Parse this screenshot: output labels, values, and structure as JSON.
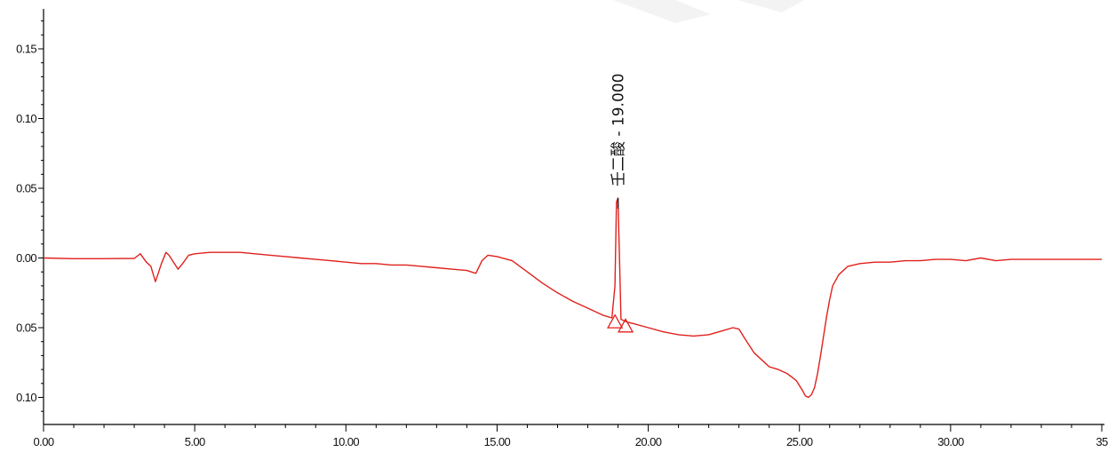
{
  "chart_data": {
    "type": "line",
    "title": "",
    "xlabel": "",
    "ylabel": "",
    "xlim": [
      0,
      35
    ],
    "ylim": [
      -0.12,
      0.175
    ],
    "x_ticks": [
      {
        "value": 0,
        "label": "0.00"
      },
      {
        "value": 5,
        "label": "5.00"
      },
      {
        "value": 10,
        "label": "10.00"
      },
      {
        "value": 15,
        "label": "15.00"
      },
      {
        "value": 20,
        "label": "20.00"
      },
      {
        "value": 25,
        "label": "25.00"
      },
      {
        "value": 30,
        "label": "30.00"
      },
      {
        "value": 35,
        "label": "35"
      }
    ],
    "y_ticks": [
      {
        "value": 0.15,
        "label": "0.15"
      },
      {
        "value": 0.1,
        "label": "0.10"
      },
      {
        "value": 0.05,
        "label": "0.05"
      },
      {
        "value": 0.0,
        "label": "0.00"
      },
      {
        "value": -0.05,
        "label": "0.05"
      },
      {
        "value": -0.1,
        "label": "0.10"
      }
    ],
    "grid": false,
    "series_color": "#e0201c",
    "series": [
      {
        "x": [
          0,
          1,
          2,
          3.0,
          3.2,
          3.4,
          3.55,
          3.7,
          3.78,
          3.9,
          4.05,
          4.15,
          4.3,
          4.45,
          4.6,
          4.8,
          5.0,
          5.5,
          6.0,
          6.5,
          7.0,
          7.5,
          8.0,
          8.5,
          9.0,
          9.5,
          10.0,
          10.5,
          11.0,
          11.5,
          12.0,
          12.5,
          13.0,
          13.5,
          14.0,
          14.3,
          14.5,
          14.7,
          15.0,
          15.5,
          16.0,
          16.5,
          17.0,
          17.5,
          18.0,
          18.5,
          18.8,
          18.9,
          18.95,
          19.0,
          19.05,
          19.1,
          19.3,
          19.5,
          20.0,
          20.5,
          21.0,
          21.5,
          22.0,
          22.5,
          22.8,
          23.0,
          23.2,
          23.5,
          23.8,
          24.0,
          24.3,
          24.6,
          24.9,
          25.1,
          25.2,
          25.3,
          25.4,
          25.5,
          25.6,
          25.7,
          25.8,
          25.9,
          26.0,
          26.1,
          26.3,
          26.6,
          27.0,
          27.5,
          28.0,
          28.5,
          29.0,
          29.5,
          30.0,
          30.5,
          31.0,
          31.5,
          32.0,
          32.5,
          33.0,
          33.5,
          34.0,
          34.5,
          35.0
        ],
        "y": [
          0.0,
          -0.0005,
          -0.0005,
          -0.0003,
          0.003,
          -0.003,
          -0.006,
          -0.017,
          -0.012,
          -0.004,
          0.004,
          0.002,
          -0.003,
          -0.008,
          -0.004,
          0.002,
          0.003,
          0.004,
          0.004,
          0.004,
          0.003,
          0.002,
          0.001,
          0.0,
          -0.001,
          -0.002,
          -0.003,
          -0.004,
          -0.004,
          -0.005,
          -0.005,
          -0.006,
          -0.007,
          -0.008,
          -0.009,
          -0.011,
          -0.002,
          0.002,
          0.001,
          -0.002,
          -0.01,
          -0.018,
          -0.025,
          -0.031,
          -0.036,
          -0.041,
          -0.043,
          -0.02,
          0.04,
          0.043,
          0.0,
          -0.044,
          -0.046,
          -0.047,
          -0.05,
          -0.053,
          -0.055,
          -0.056,
          -0.055,
          -0.052,
          -0.05,
          -0.051,
          -0.058,
          -0.068,
          -0.074,
          -0.078,
          -0.08,
          -0.083,
          -0.088,
          -0.095,
          -0.099,
          -0.1,
          -0.098,
          -0.093,
          -0.083,
          -0.07,
          -0.056,
          -0.042,
          -0.03,
          -0.02,
          -0.012,
          -0.006,
          -0.004,
          -0.003,
          -0.003,
          -0.002,
          -0.002,
          -0.001,
          -0.001,
          -0.002,
          0.0,
          -0.002,
          -0.001,
          -0.001,
          -0.001,
          -0.001,
          -0.001,
          -0.001,
          -0.001
        ]
      }
    ],
    "annotations": [
      {
        "text": "壬二酸 - 19.000",
        "x": 19.0,
        "orientation": "vertical"
      }
    ],
    "integration_markers": [
      {
        "x": 18.9,
        "y": -0.046,
        "shape": "triangle-open"
      },
      {
        "x": 19.25,
        "y": -0.049,
        "shape": "triangle-open"
      }
    ]
  }
}
